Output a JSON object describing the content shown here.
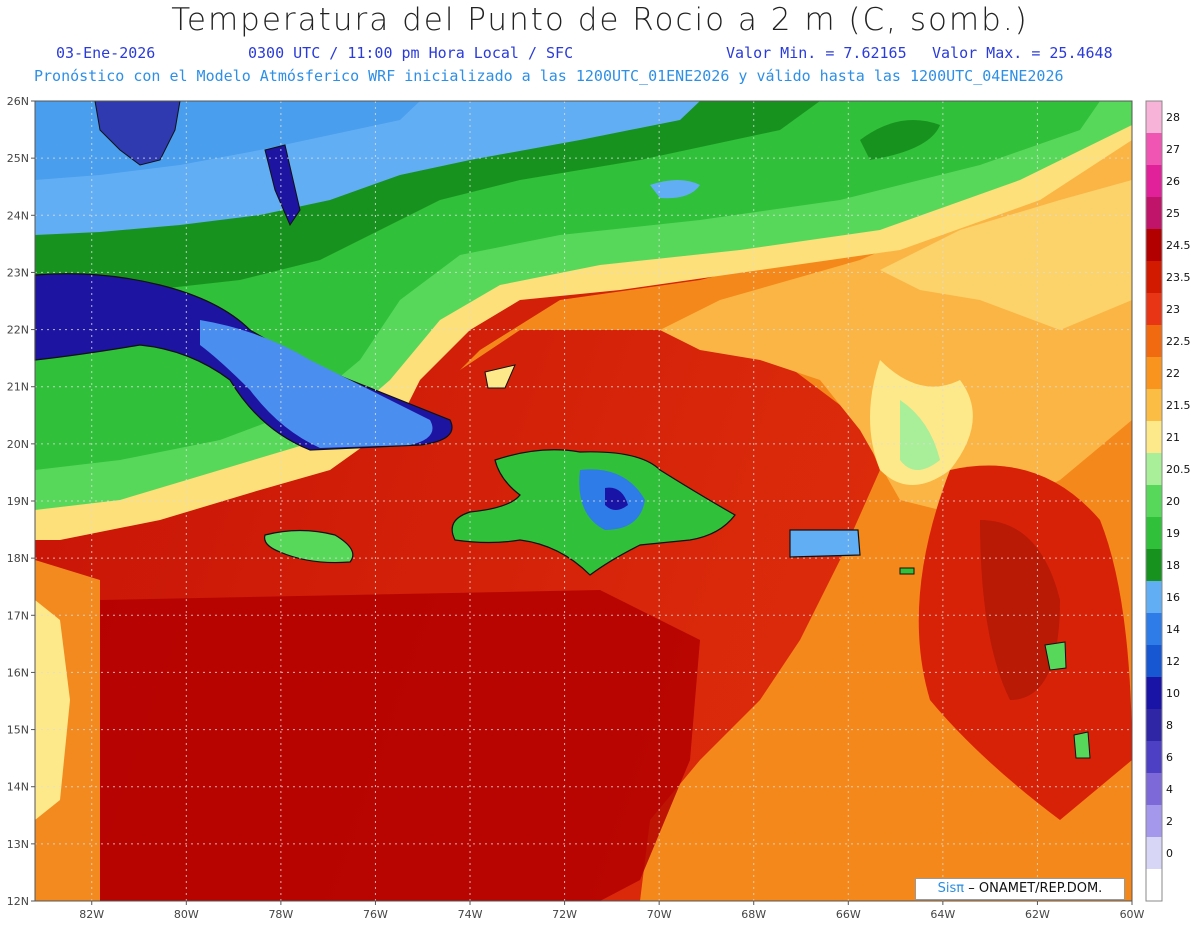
{
  "header": {
    "title": "Temperatura del Punto de Rocio a 2 m (C, somb.)",
    "date": "03-Ene-2026",
    "time": "0300 UTC / 11:00 pm Hora Local / SFC",
    "min_label": "Valor Min. = 7.62165",
    "max_label": "Valor Max. = 25.4648",
    "model_line": "Pronóstico con el Modelo Atmósferico WRF inicializado a las 1200UTC_01ENE2026 y válido hasta las  1200UTC_04ENE2026"
  },
  "map": {
    "lat_labels": [
      "26N",
      "25N",
      "24N",
      "23N",
      "22N",
      "21N",
      "20N",
      "19N",
      "18N",
      "17N",
      "16N",
      "15N",
      "14N",
      "13N",
      "12N"
    ],
    "lon_labels": [
      "82W",
      "80W",
      "78W",
      "76W",
      "74W",
      "72W",
      "70W",
      "68W",
      "66W",
      "64W",
      "62W",
      "60W"
    ],
    "lat_range": [
      12,
      26
    ],
    "lon_range": [
      -83.2,
      -60
    ],
    "grid": true
  },
  "colorbar": {
    "levels": [
      "28",
      "27",
      "26",
      "25",
      "24.5",
      "23.5",
      "23",
      "22.5",
      "22",
      "21.5",
      "21",
      "20.5",
      "20",
      "19",
      "18",
      "16",
      "14",
      "12",
      "10",
      "8",
      "6",
      "4",
      "2",
      "0"
    ],
    "colors": [
      "#f7b4d8",
      "#f055b4",
      "#e0219a",
      "#c0136a",
      "#b20000",
      "#d11a00",
      "#e83515",
      "#f26a10",
      "#f9951e",
      "#fcbd45",
      "#fde98a",
      "#a9ee98",
      "#58d85a",
      "#30c03a",
      "#18921e",
      "#62aef4",
      "#2e7ce8",
      "#1757d2",
      "#1a14a6",
      "#2f26a6",
      "#4d40c4",
      "#7d6ad8",
      "#a498ec",
      "#d8d6f6",
      "#ffffff"
    ]
  },
  "credit": {
    "sis": "Sisπ",
    "rest": "– ONAMET/REP.DOM."
  }
}
